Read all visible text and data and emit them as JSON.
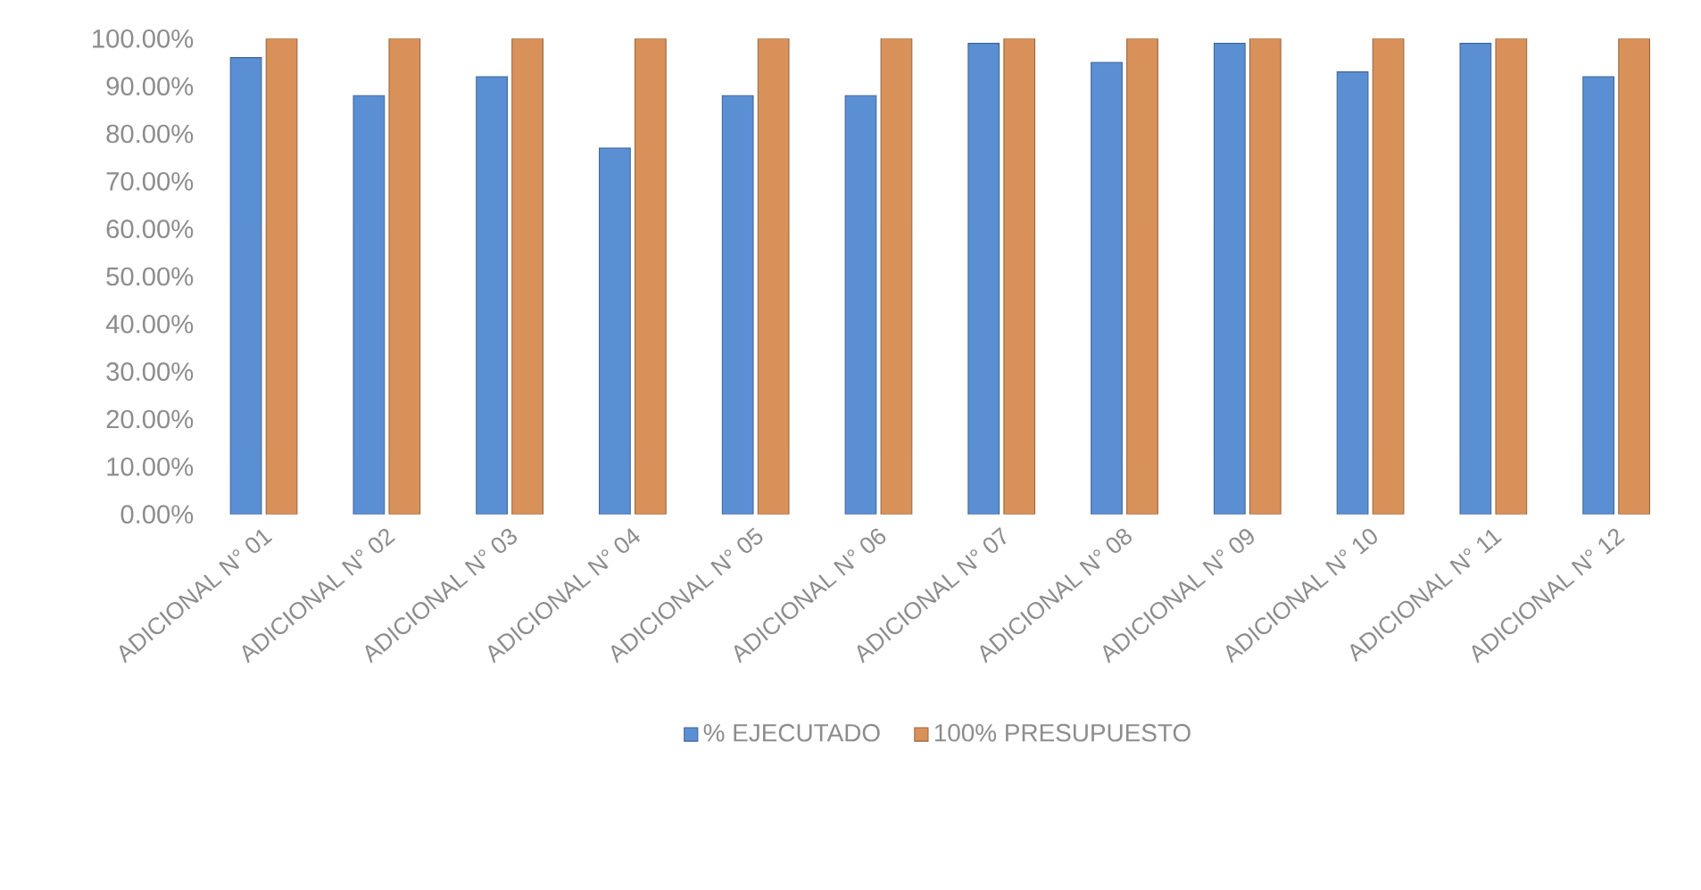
{
  "chart_data": {
    "type": "bar",
    "categories": [
      "ADICIONAL N° 01",
      "ADICIONAL N° 02",
      "ADICIONAL N° 03",
      "ADICIONAL N° 04",
      "ADICIONAL N° 05",
      "ADICIONAL N° 06",
      "ADICIONAL N° 07",
      "ADICIONAL N° 08",
      "ADICIONAL N° 09",
      "ADICIONAL N° 10",
      "ADICIONAL N° 11",
      "ADICIONAL N° 12"
    ],
    "series": [
      {
        "name": "% EJECUTADO",
        "color": "#5b8fd4",
        "values": [
          96,
          88,
          92,
          77,
          88,
          88,
          99,
          95,
          99,
          93,
          99,
          92
        ]
      },
      {
        "name": "100% PRESUPUESTO",
        "color": "#d9915a",
        "values": [
          100,
          100,
          100,
          100,
          100,
          100,
          100,
          100,
          100,
          100,
          100,
          100
        ]
      }
    ],
    "ylim": [
      0,
      100
    ],
    "yticks": [
      {
        "value": 0,
        "label": "0.00%"
      },
      {
        "value": 10,
        "label": "10.00%"
      },
      {
        "value": 20,
        "label": "20.00%"
      },
      {
        "value": 30,
        "label": "30.00%"
      },
      {
        "value": 40,
        "label": "40.00%"
      },
      {
        "value": 50,
        "label": "50.00%"
      },
      {
        "value": 60,
        "label": "60.00%"
      },
      {
        "value": 70,
        "label": "70.00%"
      },
      {
        "value": 80,
        "label": "80.00%"
      },
      {
        "value": 90,
        "label": "90.00%"
      },
      {
        "value": 100,
        "label": "100.00%"
      }
    ],
    "legend": "bottom"
  }
}
